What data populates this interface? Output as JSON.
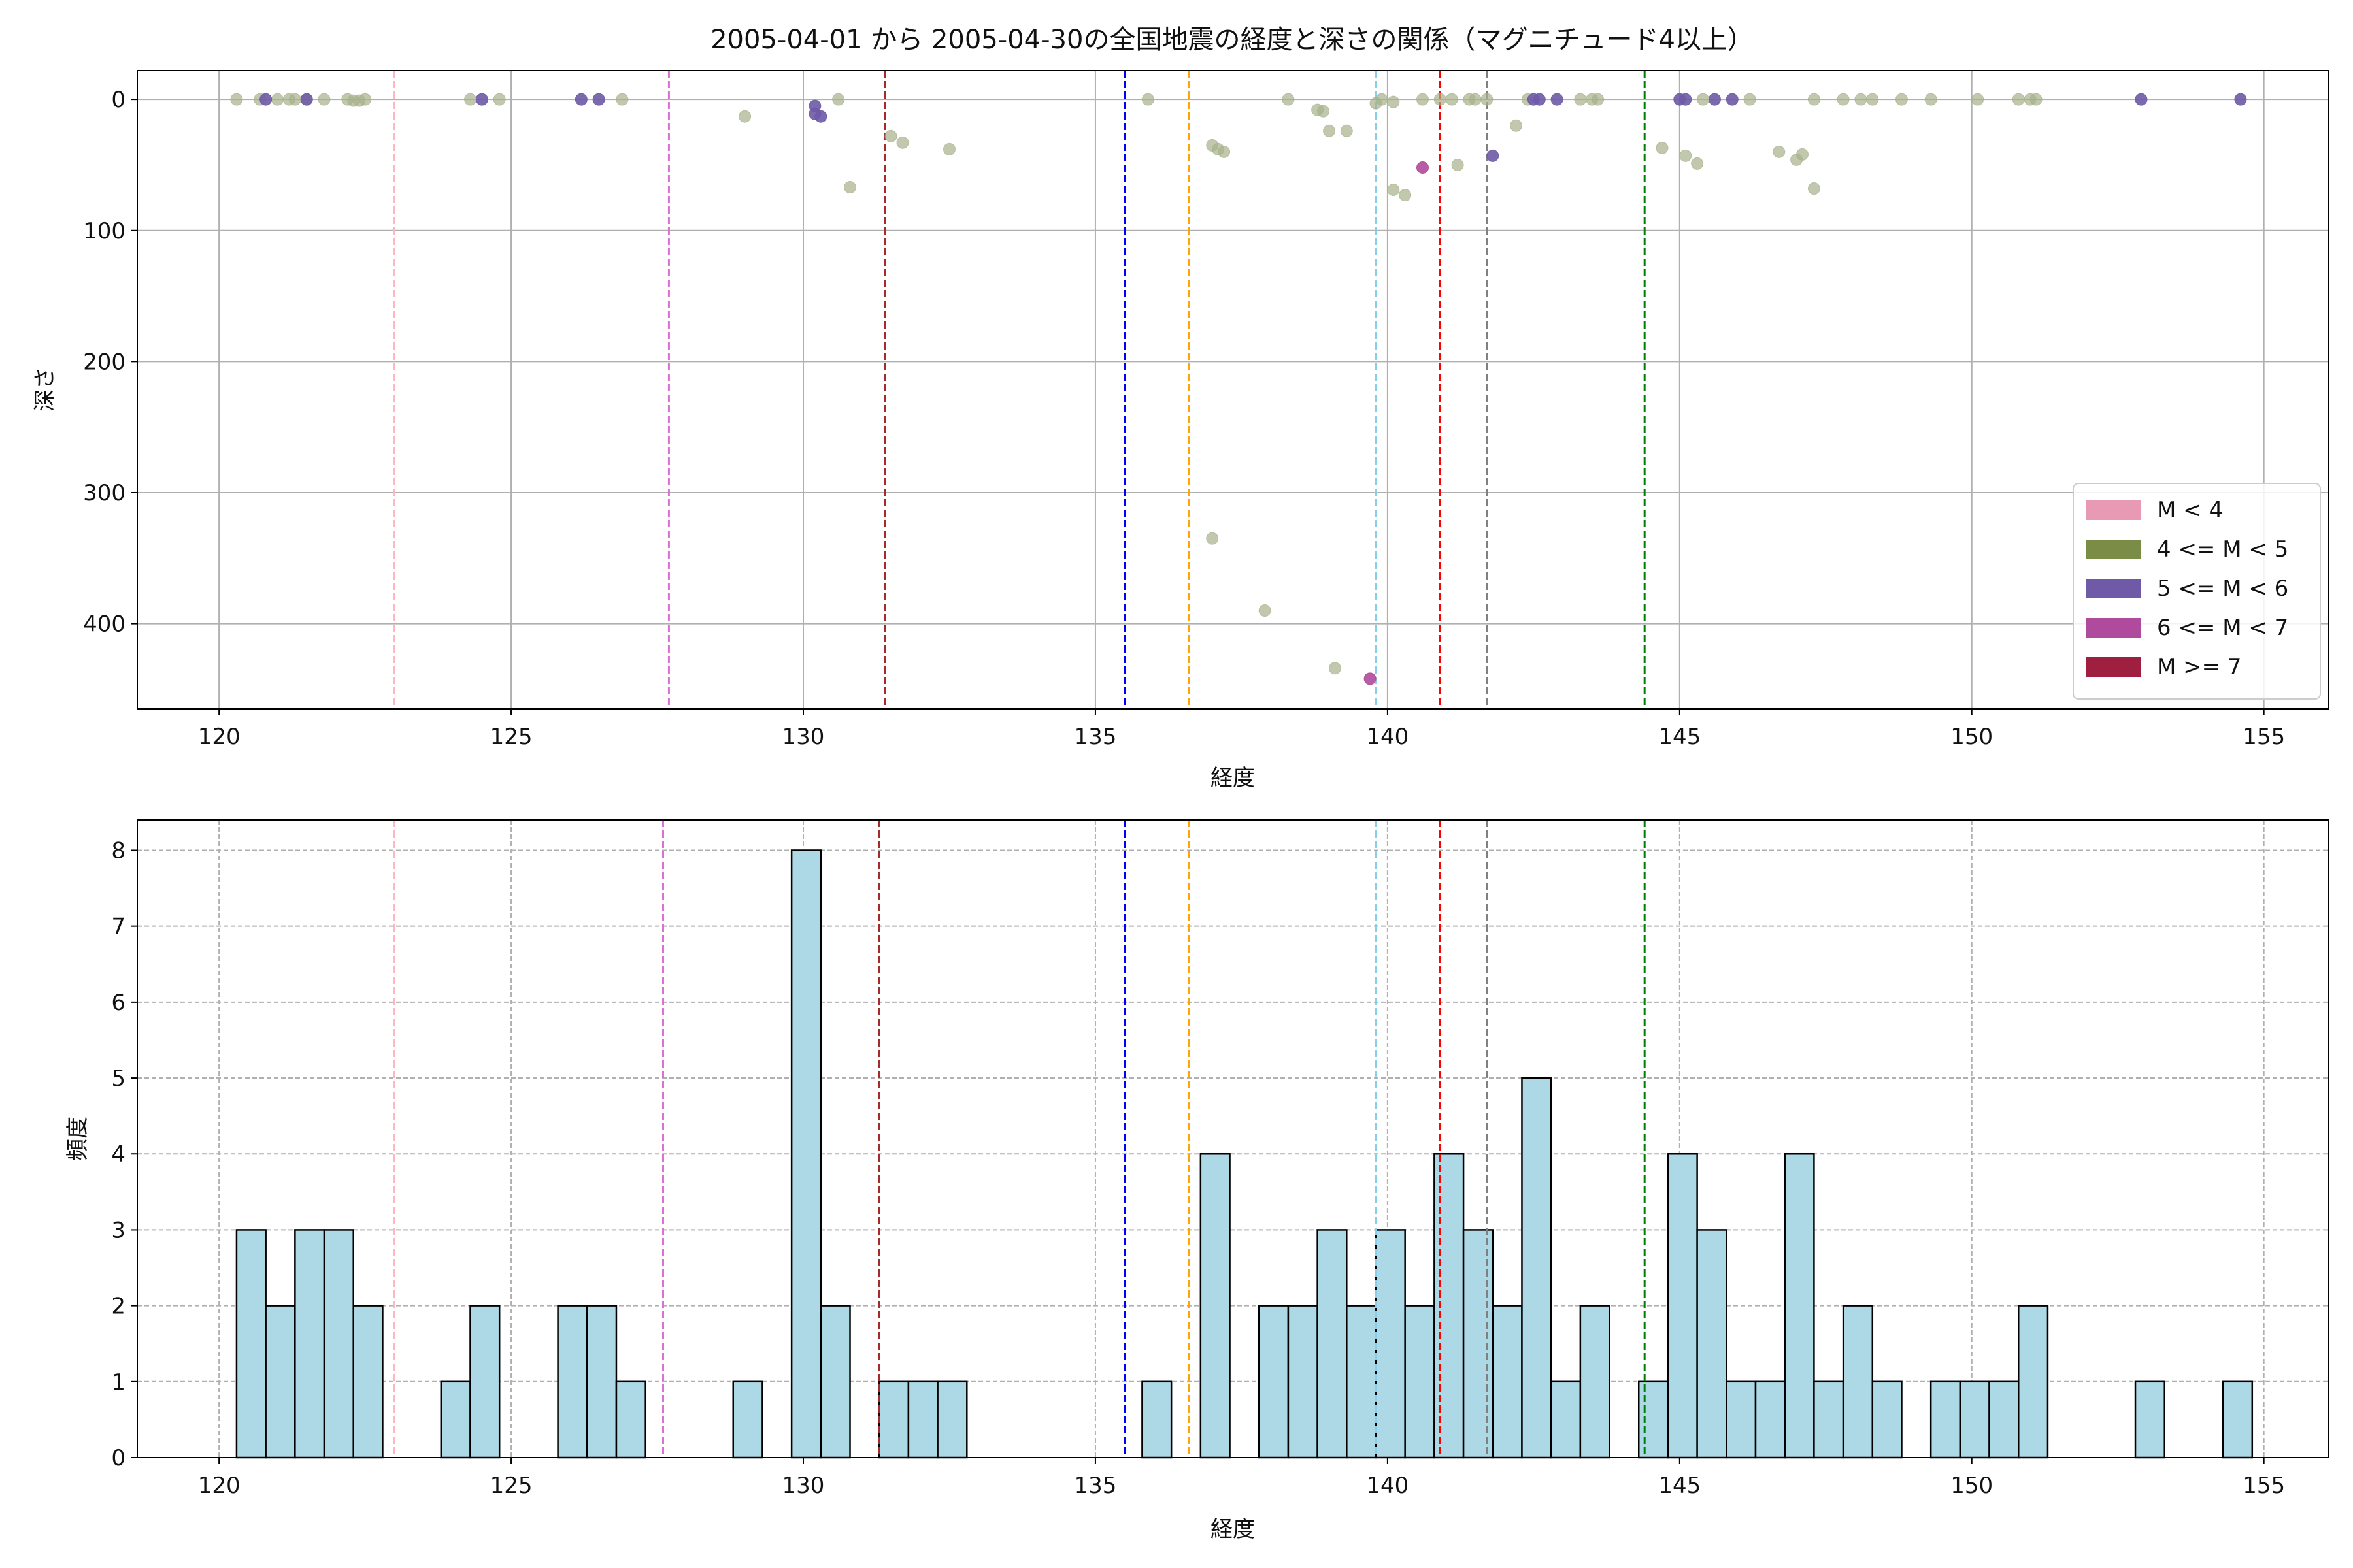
{
  "figure_title": "2005-04-01 から 2005-04-30の全国地震の経度と深さの関係（マグニチュード4以上）",
  "chart_data": [
    {
      "type": "scatter",
      "title": "2005-04-01 から 2005-04-30の全国地震の経度と深さの関係（マグニチュード4以上）",
      "xlabel": "経度",
      "ylabel": "深さ",
      "xlim": [
        118.6,
        156.1
      ],
      "ylim": [
        465,
        -22
      ],
      "y_inverted": true,
      "grid": true,
      "x_ticks": [
        120,
        125,
        130,
        135,
        140,
        145,
        150,
        155
      ],
      "y_ticks": [
        0,
        100,
        200,
        300,
        400
      ],
      "legend_position": "bottom-right",
      "legend": [
        {
          "label": "M < 4",
          "color": "#e899b3"
        },
        {
          "label": "4 <= M < 5",
          "color": "#7a8c45"
        },
        {
          "label": "5 <= M < 6",
          "color": "#6e5aa6"
        },
        {
          "label": "6 <= M < 7",
          "color": "#b04a9c"
        },
        {
          "label": "M >= 7",
          "color": "#9e1f3f"
        }
      ],
      "vlines": [
        {
          "x": 123.0,
          "color": "#ffb6c1"
        },
        {
          "x": 127.7,
          "color": "#da70d6"
        },
        {
          "x": 131.4,
          "color": "#a52a2a"
        },
        {
          "x": 135.5,
          "color": "#0000ff"
        },
        {
          "x": 136.6,
          "color": "#ffa500"
        },
        {
          "x": 139.8,
          "color": "#87ceeb"
        },
        {
          "x": 140.9,
          "color": "#ff0000"
        },
        {
          "x": 141.7,
          "color": "#808080"
        },
        {
          "x": 144.4,
          "color": "#008000"
        }
      ],
      "series": [
        {
          "name": "4 <= M < 5",
          "color": "#a6b08a",
          "points": [
            [
              120.3,
              0
            ],
            [
              120.7,
              0
            ],
            [
              121.0,
              0
            ],
            [
              121.2,
              0
            ],
            [
              121.3,
              0
            ],
            [
              121.5,
              0
            ],
            [
              121.8,
              0
            ],
            [
              122.2,
              0
            ],
            [
              122.3,
              1
            ],
            [
              122.4,
              1
            ],
            [
              122.5,
              0
            ],
            [
              124.3,
              0
            ],
            [
              124.8,
              0
            ],
            [
              126.9,
              0
            ],
            [
              129.0,
              13
            ],
            [
              130.6,
              0
            ],
            [
              130.8,
              67
            ],
            [
              131.5,
              28
            ],
            [
              131.7,
              33
            ],
            [
              132.5,
              38
            ],
            [
              135.9,
              0
            ],
            [
              137.0,
              35
            ],
            [
              137.1,
              38
            ],
            [
              137.0,
              335
            ],
            [
              137.2,
              40
            ],
            [
              137.9,
              390
            ],
            [
              138.3,
              0
            ],
            [
              138.8,
              8
            ],
            [
              138.9,
              9
            ],
            [
              139.0,
              24
            ],
            [
              139.3,
              24
            ],
            [
              139.1,
              434
            ],
            [
              139.9,
              0
            ],
            [
              139.8,
              3
            ],
            [
              140.1,
              69
            ],
            [
              140.3,
              73
            ],
            [
              140.1,
              2
            ],
            [
              140.6,
              0
            ],
            [
              140.9,
              0
            ],
            [
              141.1,
              0
            ],
            [
              141.4,
              0
            ],
            [
              141.5,
              0
            ],
            [
              141.2,
              50
            ],
            [
              141.7,
              0
            ],
            [
              142.2,
              20
            ],
            [
              142.4,
              0
            ],
            [
              143.3,
              0
            ],
            [
              143.5,
              0
            ],
            [
              143.6,
              0
            ],
            [
              144.7,
              37
            ],
            [
              145.1,
              43
            ],
            [
              145.3,
              49
            ],
            [
              145.4,
              0
            ],
            [
              146.2,
              0
            ],
            [
              146.7,
              40
            ],
            [
              147.0,
              46
            ],
            [
              147.1,
              42
            ],
            [
              147.3,
              68
            ],
            [
              147.3,
              0
            ],
            [
              147.8,
              0
            ],
            [
              148.1,
              0
            ],
            [
              148.3,
              0
            ],
            [
              148.8,
              0
            ],
            [
              149.3,
              0
            ],
            [
              150.1,
              0
            ],
            [
              150.8,
              0
            ],
            [
              151.0,
              0
            ],
            [
              151.1,
              0
            ]
          ]
        },
        {
          "name": "5 <= M < 6",
          "color": "#6e5aa6",
          "points": [
            [
              120.8,
              0
            ],
            [
              121.5,
              0
            ],
            [
              124.5,
              0
            ],
            [
              126.2,
              0
            ],
            [
              126.5,
              0
            ],
            [
              130.2,
              5
            ],
            [
              130.2,
              11
            ],
            [
              130.3,
              13
            ],
            [
              141.8,
              43
            ],
            [
              142.5,
              0
            ],
            [
              142.6,
              0
            ],
            [
              142.9,
              0
            ],
            [
              145.0,
              0
            ],
            [
              145.1,
              0
            ],
            [
              145.6,
              0
            ],
            [
              145.9,
              0
            ],
            [
              152.9,
              0
            ],
            [
              154.6,
              0
            ]
          ]
        },
        {
          "name": "6 <= M < 7",
          "color": "#b04a9c",
          "points": [
            [
              140.6,
              52
            ],
            [
              139.7,
              442
            ]
          ]
        }
      ]
    },
    {
      "type": "bar",
      "title": "",
      "xlabel": "経度",
      "ylabel": "頻度",
      "xlim": [
        118.6,
        156.1
      ],
      "ylim": [
        0,
        8.4
      ],
      "grid": true,
      "x_ticks": [
        120,
        125,
        130,
        135,
        140,
        145,
        150,
        155
      ],
      "y_ticks": [
        0,
        1,
        2,
        3,
        4,
        5,
        6,
        7,
        8
      ],
      "bar_color": "#add8e6",
      "vlines": [
        {
          "x": 123.0,
          "color": "#ffb6c1"
        },
        {
          "x": 127.6,
          "color": "#da70d6"
        },
        {
          "x": 131.3,
          "color": "#a52a2a"
        },
        {
          "x": 135.5,
          "color": "#0000ff"
        },
        {
          "x": 136.6,
          "color": "#ffa500"
        },
        {
          "x": 139.8,
          "color": "#87ceeb"
        },
        {
          "x": 140.9,
          "color": "#ff0000"
        },
        {
          "x": 141.7,
          "color": "#808080"
        },
        {
          "x": 144.4,
          "color": "#008000"
        }
      ],
      "bins": [
        [
          120.3,
          120.8,
          3
        ],
        [
          120.8,
          121.3,
          2
        ],
        [
          121.3,
          121.8,
          3
        ],
        [
          121.8,
          122.3,
          3
        ],
        [
          122.3,
          122.8,
          2
        ],
        [
          123.8,
          124.3,
          1
        ],
        [
          124.3,
          124.8,
          2
        ],
        [
          125.8,
          126.3,
          2
        ],
        [
          126.3,
          126.8,
          2
        ],
        [
          126.8,
          127.3,
          1
        ],
        [
          128.8,
          129.3,
          1
        ],
        [
          129.8,
          130.3,
          8
        ],
        [
          130.3,
          130.8,
          2
        ],
        [
          131.3,
          131.8,
          1
        ],
        [
          131.8,
          132.3,
          1
        ],
        [
          132.3,
          132.8,
          1
        ],
        [
          135.8,
          136.3,
          1
        ],
        [
          136.8,
          137.3,
          4
        ],
        [
          137.8,
          138.3,
          2
        ],
        [
          138.3,
          138.8,
          2
        ],
        [
          138.8,
          139.3,
          3
        ],
        [
          139.3,
          139.8,
          2
        ],
        [
          139.8,
          140.3,
          3
        ],
        [
          140.3,
          140.8,
          2
        ],
        [
          140.8,
          141.3,
          4
        ],
        [
          141.3,
          141.8,
          3
        ],
        [
          141.8,
          142.3,
          2
        ],
        [
          142.3,
          142.8,
          5
        ],
        [
          142.8,
          143.3,
          1
        ],
        [
          143.3,
          143.8,
          2
        ],
        [
          144.3,
          144.8,
          1
        ],
        [
          144.8,
          145.3,
          4
        ],
        [
          145.3,
          145.8,
          3
        ],
        [
          145.8,
          146.3,
          1
        ],
        [
          146.3,
          146.8,
          1
        ],
        [
          146.8,
          147.3,
          4
        ],
        [
          147.3,
          147.8,
          1
        ],
        [
          147.8,
          148.3,
          2
        ],
        [
          148.3,
          148.8,
          1
        ],
        [
          149.3,
          149.8,
          1
        ],
        [
          149.8,
          150.3,
          1
        ],
        [
          150.3,
          150.8,
          1
        ],
        [
          150.8,
          151.3,
          2
        ],
        [
          152.8,
          153.3,
          1
        ],
        [
          154.3,
          154.8,
          1
        ]
      ]
    }
  ]
}
